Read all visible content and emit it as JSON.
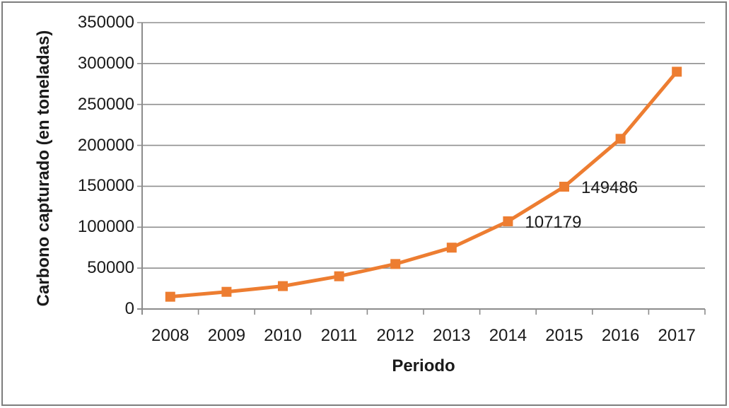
{
  "chart_data": {
    "type": "line",
    "title": "",
    "xlabel": "Periodo",
    "ylabel": "Carbono capturado (en toneladas)",
    "categories": [
      "2008",
      "2009",
      "2010",
      "2011",
      "2012",
      "2013",
      "2014",
      "2015",
      "2016",
      "2017"
    ],
    "series": [
      {
        "name": "Carbono capturado (en toneladas)",
        "marker": "square",
        "color": "#ED7D31",
        "values": [
          15000,
          21000,
          28000,
          40000,
          55000,
          75000,
          107179,
          149486,
          208000,
          290000
        ]
      }
    ],
    "point_labels": [
      {
        "index": 6,
        "text": "107179"
      },
      {
        "index": 7,
        "text": "149486"
      }
    ],
    "yticks": [
      0,
      50000,
      100000,
      150000,
      200000,
      250000,
      300000,
      350000
    ],
    "ylim": [
      0,
      350000
    ],
    "grid": "horizontal",
    "legend": "none",
    "colors": {
      "series": "#ED7D31",
      "gridline": "#8f8f8f",
      "axis": "#8c8c8c",
      "text": "#1a1a1a",
      "frame_border": "#7d7d7d",
      "background": "#ffffff"
    }
  }
}
